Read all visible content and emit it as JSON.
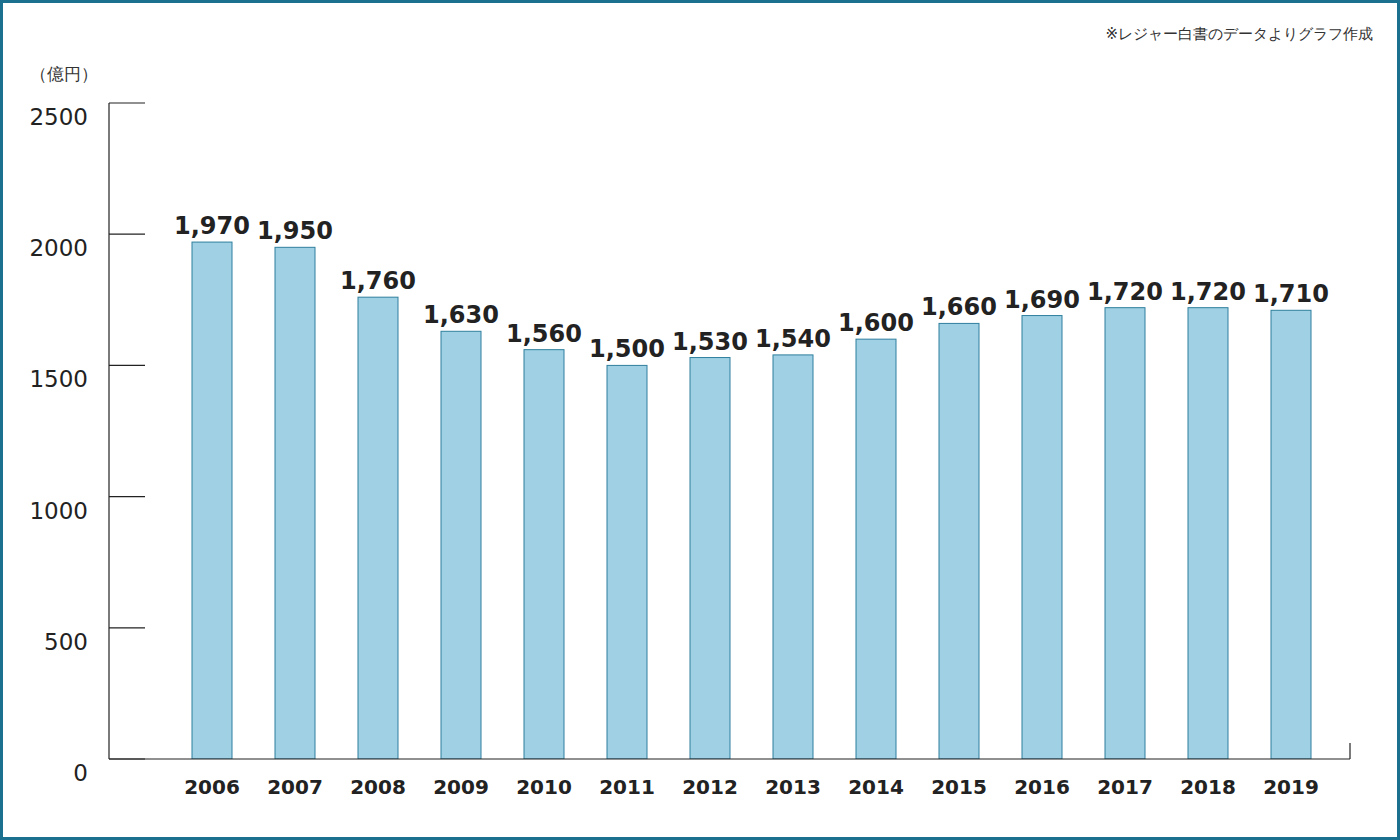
{
  "chart_data": {
    "type": "bar",
    "annotations": [
      "※レジャー白書のデータよりグラフ作成"
    ],
    "y_label": "（億円）",
    "categories": [
      "2006",
      "2007",
      "2008",
      "2009",
      "2010",
      "2011",
      "2012",
      "2013",
      "2014",
      "2015",
      "2016",
      "2017",
      "2018",
      "2019"
    ],
    "values": [
      1970,
      1950,
      1760,
      1630,
      1560,
      1500,
      1530,
      1540,
      1600,
      1660,
      1690,
      1720,
      1720,
      1710
    ],
    "value_labels": [
      "1,970",
      "1,950",
      "1,760",
      "1,630",
      "1,560",
      "1,500",
      "1,530",
      "1,540",
      "1,600",
      "1,660",
      "1,690",
      "1,720",
      "1,720",
      "1,710"
    ],
    "color": "#9fd0e3",
    "ylim": [
      0,
      2500
    ],
    "yticks": [
      0,
      500,
      1000,
      1500,
      2000,
      2500
    ],
    "grid": false,
    "data_labels": true
  }
}
